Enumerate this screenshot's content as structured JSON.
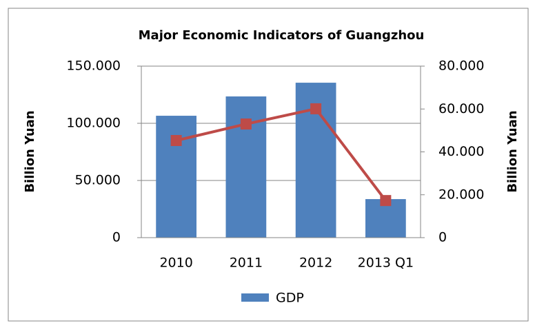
{
  "chart_data": {
    "type": "combo",
    "title": "Major Economic Indicators of Guangzhou",
    "y_label": "Billion Yuan",
    "y2_label": "Billion Yuan",
    "categories": [
      "2010",
      "2011",
      "2012",
      "2013 Q1"
    ],
    "series": [
      {
        "name": "GDP",
        "type": "bar",
        "color": "#4f81bd",
        "values": [
          106.6,
          123.5,
          135.5,
          33.7
        ]
      },
      {
        "type": "line",
        "axis": "y2",
        "color": "#be4b48",
        "values": [
          45.3,
          53,
          60.1,
          17.3
        ]
      }
    ],
    "ylim": [
      0,
      150
    ],
    "yticks": [
      0,
      {
        "value": 50,
        "label": "50.000"
      },
      {
        "value": 100,
        "label": "100.000"
      },
      {
        "value": 150,
        "label": "150.000"
      }
    ],
    "y2lim": [
      0,
      80
    ],
    "y2ticks": [
      0,
      {
        "value": 20,
        "label": "20.000"
      },
      {
        "value": 40,
        "label": "40.000"
      },
      {
        "value": 60,
        "label": "60.000"
      },
      {
        "value": 80,
        "label": "80.000"
      }
    ],
    "grid": true,
    "legend": "bottom"
  }
}
